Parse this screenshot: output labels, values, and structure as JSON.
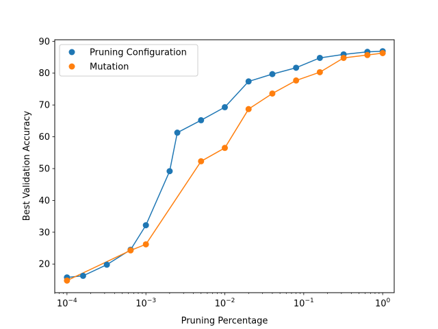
{
  "chart_data": {
    "type": "line",
    "title": "",
    "xlabel": "Pruning Percentage",
    "ylabel": "Best Validation Accuracy",
    "xscale": "log",
    "xlim": [
      7e-05,
      1.4
    ],
    "ylim": [
      11,
      90.5
    ],
    "xticks": [
      {
        "value": 0.0001,
        "base": "10",
        "exp": "−4"
      },
      {
        "value": 0.001,
        "base": "10",
        "exp": "−3"
      },
      {
        "value": 0.01,
        "base": "10",
        "exp": "−2"
      },
      {
        "value": 0.1,
        "base": "10",
        "exp": "−1"
      },
      {
        "value": 1,
        "base": "10",
        "exp": "0"
      }
    ],
    "yticks": [
      20,
      30,
      40,
      50,
      60,
      70,
      80,
      90
    ],
    "grid": false,
    "legend_position": "top-left",
    "series": [
      {
        "name": "Pruning Configuration",
        "color": "#1f77b4",
        "x": [
          0.0001,
          0.00016,
          0.00032,
          0.00064,
          0.001,
          0.002,
          0.0025,
          0.005,
          0.01,
          0.02,
          0.04,
          0.08,
          0.16,
          0.32,
          0.64,
          1.0
        ],
        "y": [
          15.8,
          16.3,
          19.8,
          24.5,
          32.2,
          49.2,
          61.3,
          65.2,
          69.3,
          77.4,
          79.7,
          81.7,
          84.8,
          85.9,
          86.7,
          86.9
        ]
      },
      {
        "name": "Mutation",
        "color": "#ff7f0e",
        "x": [
          0.0001,
          0.00064,
          0.001,
          0.005,
          0.01,
          0.02,
          0.04,
          0.08,
          0.16,
          0.32,
          0.64,
          1.0
        ],
        "y": [
          14.8,
          24.3,
          26.2,
          52.3,
          56.5,
          68.7,
          73.6,
          77.7,
          80.3,
          84.8,
          85.7,
          86.3
        ]
      }
    ]
  }
}
